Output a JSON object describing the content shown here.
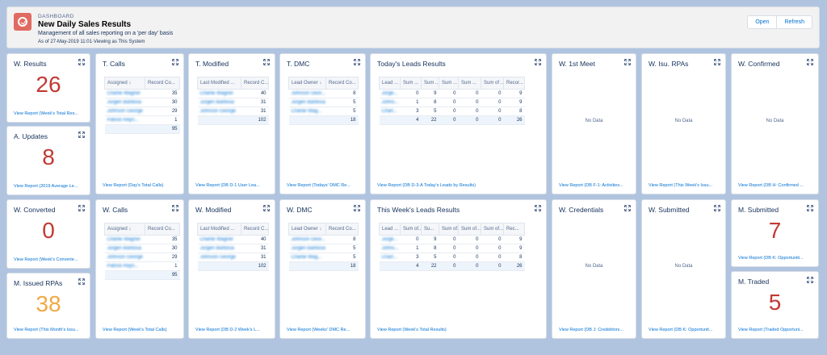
{
  "header": {
    "eyebrow": "DASHBOARD",
    "title": "New Daily Sales Results",
    "subtitle": "Management of all sales reporting on a 'per day' basis",
    "as_of": "As of 27-May-2019 11:01·Viewing as This System",
    "open_label": "Open",
    "refresh_label": "Refresh"
  },
  "colors": {
    "metric_red": "#c23934",
    "metric_orange": "#f0a944",
    "link": "#0070d2",
    "background": "#b0c4df"
  },
  "icons": {
    "logo": "dashboard-icon",
    "expand": "expand-icon"
  },
  "cards": {
    "w_results": {
      "title": "W. Results",
      "value": "26",
      "link": "View Report (Week's Total Res..."
    },
    "a_updates": {
      "title": "A. Updates",
      "value": "8",
      "link": "View Report (2019 Average Le..."
    },
    "w_converted": {
      "title": "W. Converted",
      "value": "0",
      "link": "View Report (Week's Converte..."
    },
    "m_issued": {
      "title": "M. Issued RPAs",
      "value": "38",
      "link": "View Report (This Month's Issu..."
    },
    "t_calls": {
      "title": "T. Calls",
      "cols": [
        "Assigned ↓",
        "Record Co..."
      ],
      "rows": [
        [
          "Charlie Wagner",
          "35"
        ],
        [
          "Jürgen Barbosa",
          "30"
        ],
        [
          "Johnson George",
          "29"
        ],
        [
          "Patrick Reyn...",
          "1"
        ]
      ],
      "total": "95",
      "link": "View Report (Day's Total Calls)"
    },
    "w_calls": {
      "title": "W. Calls",
      "cols": [
        "Assigned ↓",
        "Record Co..."
      ],
      "rows": [
        [
          "Charlie Wagner",
          "35"
        ],
        [
          "Jürgen Barbosa",
          "30"
        ],
        [
          "Johnson George",
          "29"
        ],
        [
          "Patrick Reyn...",
          "1"
        ]
      ],
      "total": "95",
      "link": "View Report (Week's Total Calls)"
    },
    "t_modified": {
      "title": "T. Modified",
      "cols": [
        "Last Modified ...",
        "Record C..."
      ],
      "rows": [
        [
          "Charlie Wagner",
          "40"
        ],
        [
          "Jürgen Barbosa",
          "31"
        ],
        [
          "Johnson George",
          "31"
        ]
      ],
      "total": "102",
      "link": "View Report (DB D-1 User Lea..."
    },
    "w_modified": {
      "title": "W. Modified",
      "cols": [
        "Last Modified ...",
        "Record C..."
      ],
      "rows": [
        [
          "Charlie Wagner",
          "40"
        ],
        [
          "Jürgen Barbosa",
          "31"
        ],
        [
          "Johnson George",
          "31"
        ]
      ],
      "total": "102",
      "link": "View Report (DB D-2 Week's L..."
    },
    "t_dmc": {
      "title": "T. DMC",
      "cols": [
        "Lead Owner ↓",
        "Record Co..."
      ],
      "rows": [
        [
          "Johnson Geor...",
          "8"
        ],
        [
          "Jürgen Barbosa",
          "5"
        ],
        [
          "Charlie Wag...",
          "5"
        ]
      ],
      "total": "18",
      "link": "View Report (Todays' DMC Re..."
    },
    "w_dmc": {
      "title": "W. DMC",
      "cols": [
        "Lead Owner ↓",
        "Record Co..."
      ],
      "rows": [
        [
          "Johnson Geor...",
          "8"
        ],
        [
          "Jürgen Barbosa",
          "5"
        ],
        [
          "Charlie Wag...",
          "5"
        ]
      ],
      "total": "18",
      "link": "View Report (Weeks' DMC Re..."
    },
    "today_leads": {
      "title": "Today's Leads Results",
      "cols": [
        "Lead ...",
        "Sum ...",
        "Sum ...",
        "Sum ...",
        "Sum ...",
        "Sum of ...",
        "Recor..."
      ],
      "rows": [
        [
          "Jürge...",
          "0",
          "9",
          "0",
          "0",
          "0",
          "9"
        ],
        [
          "Johns...",
          "1",
          "8",
          "0",
          "0",
          "0",
          "9"
        ],
        [
          "Charl...",
          "3",
          "5",
          "0",
          "0",
          "0",
          "8"
        ]
      ],
      "totals": [
        "",
        "4",
        "22",
        "0",
        "0",
        "0",
        "26"
      ],
      "link": "View Report (DB D-3-A Today's Leads by Results)"
    },
    "week_leads": {
      "title": "This Week's Leads Results",
      "cols": [
        "Lead ...",
        "Sum of...",
        "Su...",
        "Sum of...",
        "Sum of...",
        "Sum of...",
        "Rec..."
      ],
      "rows": [
        [
          "Jürge...",
          "0",
          "9",
          "0",
          "0",
          "0",
          "9"
        ],
        [
          "Johns...",
          "1",
          "8",
          "0",
          "0",
          "0",
          "9"
        ],
        [
          "Charl...",
          "3",
          "5",
          "0",
          "0",
          "0",
          "8"
        ]
      ],
      "totals": [
        "",
        "4",
        "22",
        "0",
        "0",
        "0",
        "26"
      ],
      "link": "View Report (Week's Total Results)"
    },
    "w_first_meet": {
      "title": "W. 1st Meet",
      "empty": "No Data",
      "link": "View Report (DB F-1: Activities..."
    },
    "w_credentials": {
      "title": "W. Credentials",
      "empty": "No Data",
      "link": "View Report (DB J: Credebtors..."
    },
    "w_isu_rpas": {
      "title": "W. Isu. RPAs",
      "empty": "No Data",
      "link": "View Report (This Week's Issu..."
    },
    "w_submitted": {
      "title": "W. Submitted",
      "empty": "No Data",
      "link": "View Report (DB K: Opportunit..."
    },
    "w_confirmed": {
      "title": "W. Confirmed",
      "empty": "No Data",
      "link": "View Report (DB H: Confirmed ..."
    },
    "m_submitted": {
      "title": "M. Submitted",
      "value": "7",
      "link": "View Report (DB K: Opportuniti..."
    },
    "m_traded": {
      "title": "M. Traded",
      "value": "5",
      "link": "View Report (Traded Opportuni..."
    }
  }
}
